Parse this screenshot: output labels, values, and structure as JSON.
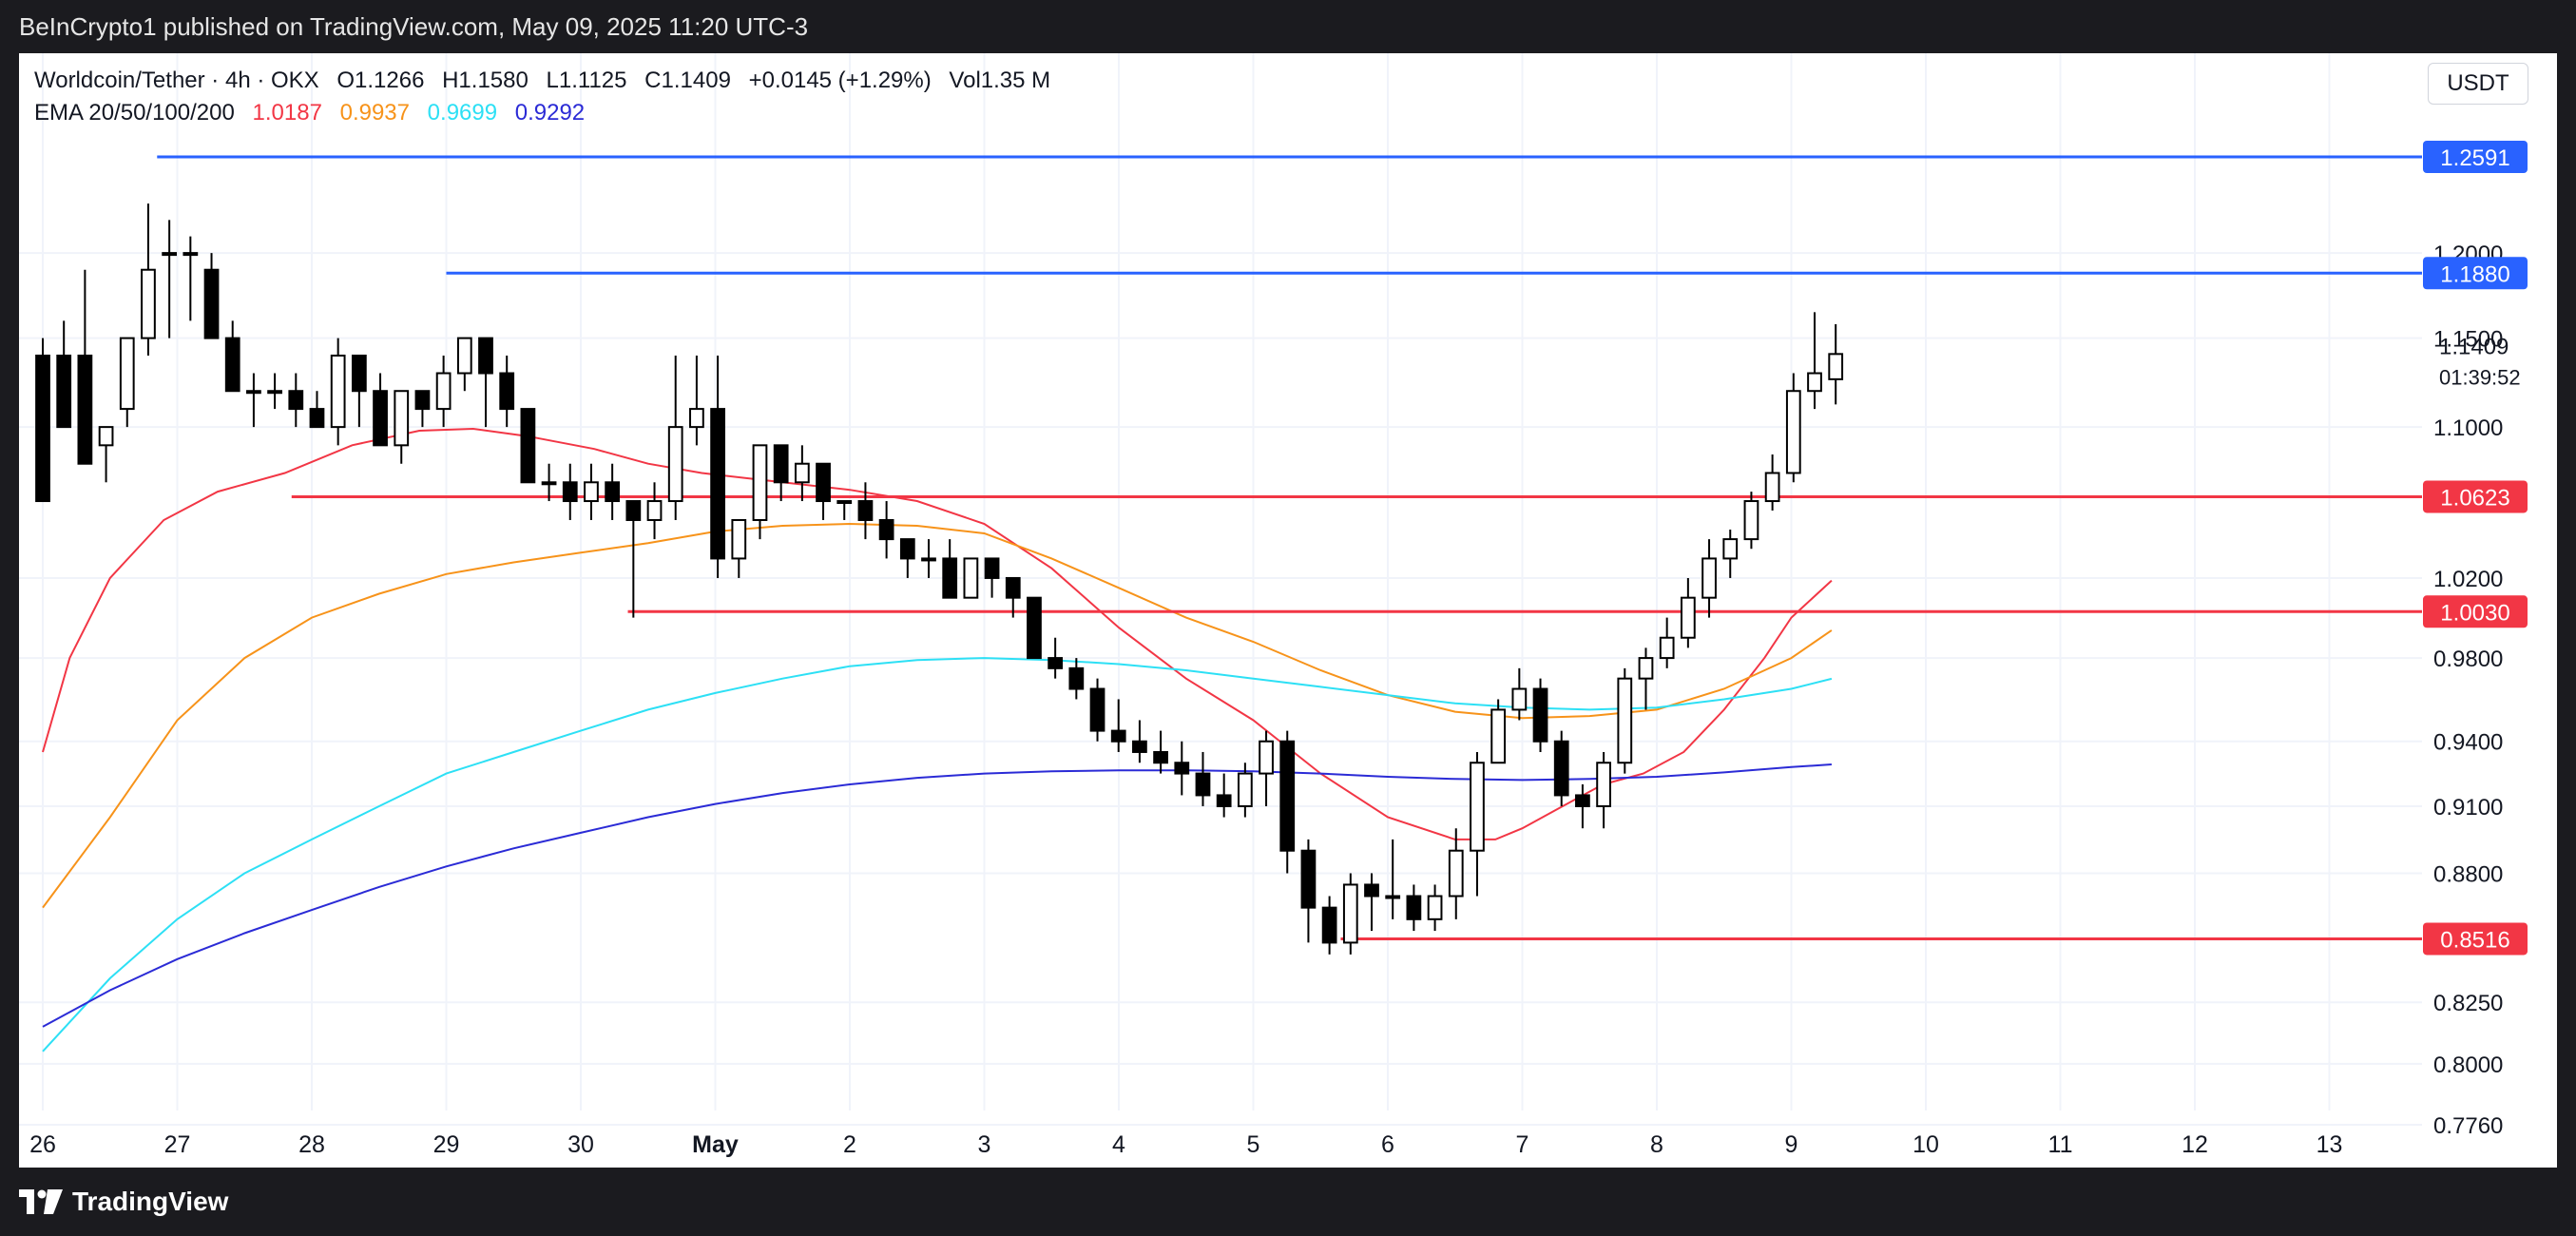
{
  "header": {
    "published": "BeInCrypto1 published on TradingView.com, May 09, 2025 11:20 UTC-3"
  },
  "legend": {
    "symbol": "Worldcoin/Tether · 4h · OKX",
    "open": "O1.1266",
    "high": "H1.1580",
    "low": "L1.1125",
    "close": "C1.1409",
    "change": "+0.0145 (+1.29%)",
    "volume": "Vol1.35 M",
    "ema_label": "EMA 20/50/100/200",
    "ema_values": [
      "1.0187",
      "0.9937",
      "0.9699",
      "0.9292"
    ],
    "ema_colors": [
      "#f23645",
      "#f7931a",
      "#2de0f5",
      "#2b2bd6"
    ]
  },
  "currency": "USDT",
  "countdown": "01:39:52",
  "footer": {
    "brand": "TradingView"
  },
  "colors": {
    "up_candle": "#ffffff",
    "down_candle": "#000000",
    "resistance": "#2962ff",
    "support": "#f23645",
    "grid": "#f0f3fa"
  },
  "chart_data": {
    "type": "candlestick",
    "title": "",
    "timeframe": "4h",
    "price_axis_ticks": [
      "1.2000",
      "1.1500",
      "1.1000",
      "1.0200",
      "0.9800",
      "0.9400",
      "0.9100",
      "0.8800",
      "0.8250",
      "0.8000",
      "0.7760"
    ],
    "time_axis_ticks": [
      "26",
      "27",
      "28",
      "29",
      "30",
      "May",
      "2",
      "3",
      "4",
      "5",
      "6",
      "7",
      "8",
      "9",
      "10",
      "11",
      "12",
      "13"
    ],
    "ylim": [
      0.76,
      1.28
    ],
    "last_price": 1.1409,
    "horizontal_levels": [
      {
        "price": 1.2591,
        "label": "1.2591",
        "color": "#2962ff",
        "start_day": 26.85
      },
      {
        "price": 1.188,
        "label": "1.1880",
        "color": "#2962ff",
        "start_day": 29.0
      },
      {
        "price": 1.0623,
        "label": "1.0623",
        "color": "#f23645",
        "start_day": 27.85
      },
      {
        "price": 1.003,
        "label": "1.0030",
        "color": "#f23645",
        "start_day": 30.35
      },
      {
        "price": 0.8516,
        "label": "0.8516",
        "color": "#f23645",
        "start_day": 35.65
      }
    ],
    "candles": [
      {
        "o": 1.14,
        "h": 1.15,
        "l": 1.06,
        "c": 1.06
      },
      {
        "o": 1.14,
        "h": 1.16,
        "l": 1.1,
        "c": 1.1
      },
      {
        "o": 1.14,
        "h": 1.19,
        "l": 1.08,
        "c": 1.08
      },
      {
        "o": 1.09,
        "h": 1.1,
        "l": 1.07,
        "c": 1.1
      },
      {
        "o": 1.11,
        "h": 1.15,
        "l": 1.1,
        "c": 1.15
      },
      {
        "o": 1.15,
        "h": 1.23,
        "l": 1.14,
        "c": 1.19
      },
      {
        "o": 1.2,
        "h": 1.22,
        "l": 1.15,
        "c": 1.2
      },
      {
        "o": 1.2,
        "h": 1.21,
        "l": 1.16,
        "c": 1.2
      },
      {
        "o": 1.19,
        "h": 1.2,
        "l": 1.15,
        "c": 1.15
      },
      {
        "o": 1.15,
        "h": 1.16,
        "l": 1.12,
        "c": 1.12
      },
      {
        "o": 1.12,
        "h": 1.13,
        "l": 1.1,
        "c": 1.12
      },
      {
        "o": 1.12,
        "h": 1.13,
        "l": 1.11,
        "c": 1.12
      },
      {
        "o": 1.12,
        "h": 1.13,
        "l": 1.1,
        "c": 1.11
      },
      {
        "o": 1.11,
        "h": 1.12,
        "l": 1.1,
        "c": 1.1
      },
      {
        "o": 1.1,
        "h": 1.15,
        "l": 1.09,
        "c": 1.14
      },
      {
        "o": 1.14,
        "h": 1.14,
        "l": 1.1,
        "c": 1.12
      },
      {
        "o": 1.12,
        "h": 1.13,
        "l": 1.09,
        "c": 1.09
      },
      {
        "o": 1.09,
        "h": 1.12,
        "l": 1.08,
        "c": 1.12
      },
      {
        "o": 1.12,
        "h": 1.12,
        "l": 1.1,
        "c": 1.11
      },
      {
        "o": 1.11,
        "h": 1.14,
        "l": 1.1,
        "c": 1.13
      },
      {
        "o": 1.13,
        "h": 1.15,
        "l": 1.12,
        "c": 1.15
      },
      {
        "o": 1.15,
        "h": 1.15,
        "l": 1.1,
        "c": 1.13
      },
      {
        "o": 1.13,
        "h": 1.14,
        "l": 1.1,
        "c": 1.11
      },
      {
        "o": 1.11,
        "h": 1.11,
        "l": 1.07,
        "c": 1.07
      },
      {
        "o": 1.07,
        "h": 1.08,
        "l": 1.06,
        "c": 1.07
      },
      {
        "o": 1.07,
        "h": 1.08,
        "l": 1.05,
        "c": 1.06
      },
      {
        "o": 1.06,
        "h": 1.08,
        "l": 1.05,
        "c": 1.07
      },
      {
        "o": 1.07,
        "h": 1.08,
        "l": 1.05,
        "c": 1.06
      },
      {
        "o": 1.06,
        "h": 1.06,
        "l": 1.0,
        "c": 1.05
      },
      {
        "o": 1.05,
        "h": 1.07,
        "l": 1.04,
        "c": 1.06
      },
      {
        "o": 1.06,
        "h": 1.14,
        "l": 1.05,
        "c": 1.1
      },
      {
        "o": 1.1,
        "h": 1.14,
        "l": 1.09,
        "c": 1.11
      },
      {
        "o": 1.11,
        "h": 1.14,
        "l": 1.02,
        "c": 1.03
      },
      {
        "o": 1.03,
        "h": 1.05,
        "l": 1.02,
        "c": 1.05
      },
      {
        "o": 1.05,
        "h": 1.09,
        "l": 1.04,
        "c": 1.09
      },
      {
        "o": 1.09,
        "h": 1.09,
        "l": 1.06,
        "c": 1.07
      },
      {
        "o": 1.07,
        "h": 1.09,
        "l": 1.06,
        "c": 1.08
      },
      {
        "o": 1.08,
        "h": 1.08,
        "l": 1.05,
        "c": 1.06
      },
      {
        "o": 1.06,
        "h": 1.06,
        "l": 1.05,
        "c": 1.06
      },
      {
        "o": 1.06,
        "h": 1.07,
        "l": 1.04,
        "c": 1.05
      },
      {
        "o": 1.05,
        "h": 1.06,
        "l": 1.03,
        "c": 1.04
      },
      {
        "o": 1.04,
        "h": 1.04,
        "l": 1.02,
        "c": 1.03
      },
      {
        "o": 1.03,
        "h": 1.04,
        "l": 1.02,
        "c": 1.03
      },
      {
        "o": 1.03,
        "h": 1.04,
        "l": 1.01,
        "c": 1.01
      },
      {
        "o": 1.01,
        "h": 1.03,
        "l": 1.01,
        "c": 1.03
      },
      {
        "o": 1.03,
        "h": 1.03,
        "l": 1.01,
        "c": 1.02
      },
      {
        "o": 1.02,
        "h": 1.02,
        "l": 1.0,
        "c": 1.01
      },
      {
        "o": 1.01,
        "h": 1.01,
        "l": 0.98,
        "c": 0.98
      },
      {
        "o": 0.98,
        "h": 0.99,
        "l": 0.97,
        "c": 0.975
      },
      {
        "o": 0.975,
        "h": 0.98,
        "l": 0.96,
        "c": 0.965
      },
      {
        "o": 0.965,
        "h": 0.97,
        "l": 0.94,
        "c": 0.945
      },
      {
        "o": 0.945,
        "h": 0.96,
        "l": 0.935,
        "c": 0.94
      },
      {
        "o": 0.94,
        "h": 0.95,
        "l": 0.93,
        "c": 0.935
      },
      {
        "o": 0.935,
        "h": 0.945,
        "l": 0.925,
        "c": 0.93
      },
      {
        "o": 0.93,
        "h": 0.94,
        "l": 0.915,
        "c": 0.925
      },
      {
        "o": 0.925,
        "h": 0.935,
        "l": 0.91,
        "c": 0.915
      },
      {
        "o": 0.915,
        "h": 0.925,
        "l": 0.905,
        "c": 0.91
      },
      {
        "o": 0.91,
        "h": 0.93,
        "l": 0.905,
        "c": 0.925
      },
      {
        "o": 0.925,
        "h": 0.945,
        "l": 0.91,
        "c": 0.94
      },
      {
        "o": 0.94,
        "h": 0.945,
        "l": 0.88,
        "c": 0.89
      },
      {
        "o": 0.89,
        "h": 0.895,
        "l": 0.85,
        "c": 0.865
      },
      {
        "o": 0.865,
        "h": 0.87,
        "l": 0.845,
        "c": 0.85
      },
      {
        "o": 0.85,
        "h": 0.88,
        "l": 0.845,
        "c": 0.875
      },
      {
        "o": 0.875,
        "h": 0.88,
        "l": 0.855,
        "c": 0.87
      },
      {
        "o": 0.87,
        "h": 0.895,
        "l": 0.86,
        "c": 0.87
      },
      {
        "o": 0.87,
        "h": 0.875,
        "l": 0.855,
        "c": 0.86
      },
      {
        "o": 0.86,
        "h": 0.875,
        "l": 0.855,
        "c": 0.87
      },
      {
        "o": 0.87,
        "h": 0.9,
        "l": 0.86,
        "c": 0.89
      },
      {
        "o": 0.89,
        "h": 0.935,
        "l": 0.87,
        "c": 0.93
      },
      {
        "o": 0.93,
        "h": 0.96,
        "l": 0.93,
        "c": 0.955
      },
      {
        "o": 0.955,
        "h": 0.975,
        "l": 0.95,
        "c": 0.965
      },
      {
        "o": 0.965,
        "h": 0.97,
        "l": 0.935,
        "c": 0.94
      },
      {
        "o": 0.94,
        "h": 0.945,
        "l": 0.91,
        "c": 0.915
      },
      {
        "o": 0.915,
        "h": 0.92,
        "l": 0.9,
        "c": 0.91
      },
      {
        "o": 0.91,
        "h": 0.935,
        "l": 0.9,
        "c": 0.93
      },
      {
        "o": 0.93,
        "h": 0.975,
        "l": 0.925,
        "c": 0.97
      },
      {
        "o": 0.97,
        "h": 0.985,
        "l": 0.955,
        "c": 0.98
      },
      {
        "o": 0.98,
        "h": 1.0,
        "l": 0.975,
        "c": 0.99
      },
      {
        "o": 0.99,
        "h": 1.02,
        "l": 0.985,
        "c": 1.01
      },
      {
        "o": 1.01,
        "h": 1.04,
        "l": 1.0,
        "c": 1.03
      },
      {
        "o": 1.03,
        "h": 1.045,
        "l": 1.02,
        "c": 1.04
      },
      {
        "o": 1.04,
        "h": 1.065,
        "l": 1.035,
        "c": 1.06
      },
      {
        "o": 1.06,
        "h": 1.085,
        "l": 1.055,
        "c": 1.075
      },
      {
        "o": 1.075,
        "h": 1.13,
        "l": 1.07,
        "c": 1.12
      },
      {
        "o": 1.12,
        "h": 1.165,
        "l": 1.11,
        "c": 1.13
      },
      {
        "o": 1.1266,
        "h": 1.158,
        "l": 1.1125,
        "c": 1.1409
      }
    ],
    "ema": [
      {
        "name": "EMA 20",
        "color": "#f23645",
        "points": [
          [
            26.0,
            0.935
          ],
          [
            26.2,
            0.98
          ],
          [
            26.5,
            1.02
          ],
          [
            26.9,
            1.05
          ],
          [
            27.3,
            1.065
          ],
          [
            27.8,
            1.075
          ],
          [
            28.3,
            1.09
          ],
          [
            28.8,
            1.098
          ],
          [
            29.2,
            1.099
          ],
          [
            29.6,
            1.095
          ],
          [
            30.1,
            1.088
          ],
          [
            30.5,
            1.08
          ],
          [
            30.9,
            1.075
          ],
          [
            31.5,
            1.07
          ],
          [
            32.0,
            1.066
          ],
          [
            32.5,
            1.06
          ],
          [
            33.0,
            1.048
          ],
          [
            33.5,
            1.025
          ],
          [
            34.0,
            0.995
          ],
          [
            34.5,
            0.97
          ],
          [
            35.0,
            0.95
          ],
          [
            35.5,
            0.925
          ],
          [
            36.0,
            0.905
          ],
          [
            36.5,
            0.895
          ],
          [
            36.8,
            0.895
          ],
          [
            37.0,
            0.9
          ],
          [
            37.3,
            0.91
          ],
          [
            37.6,
            0.92
          ],
          [
            37.9,
            0.925
          ],
          [
            38.2,
            0.935
          ],
          [
            38.5,
            0.955
          ],
          [
            38.8,
            0.98
          ],
          [
            39.0,
            1.0
          ],
          [
            39.3,
            1.0187
          ]
        ]
      },
      {
        "name": "EMA 50",
        "color": "#f7931a",
        "points": [
          [
            26.0,
            0.865
          ],
          [
            26.5,
            0.905
          ],
          [
            27.0,
            0.95
          ],
          [
            27.5,
            0.98
          ],
          [
            28.0,
            1.0
          ],
          [
            28.5,
            1.012
          ],
          [
            29.0,
            1.022
          ],
          [
            29.5,
            1.028
          ],
          [
            30.0,
            1.033
          ],
          [
            30.5,
            1.038
          ],
          [
            31.0,
            1.044
          ],
          [
            31.5,
            1.047
          ],
          [
            32.0,
            1.048
          ],
          [
            32.5,
            1.047
          ],
          [
            33.0,
            1.043
          ],
          [
            33.5,
            1.03
          ],
          [
            34.0,
            1.015
          ],
          [
            34.5,
            1.0
          ],
          [
            35.0,
            0.988
          ],
          [
            35.5,
            0.974
          ],
          [
            36.0,
            0.962
          ],
          [
            36.5,
            0.954
          ],
          [
            37.0,
            0.951
          ],
          [
            37.5,
            0.952
          ],
          [
            38.0,
            0.955
          ],
          [
            38.5,
            0.965
          ],
          [
            39.0,
            0.98
          ],
          [
            39.3,
            0.9937
          ]
        ]
      },
      {
        "name": "EMA 100",
        "color": "#2de0f5",
        "points": [
          [
            26.0,
            0.805
          ],
          [
            26.5,
            0.835
          ],
          [
            27.0,
            0.86
          ],
          [
            27.5,
            0.88
          ],
          [
            28.0,
            0.895
          ],
          [
            28.5,
            0.91
          ],
          [
            29.0,
            0.925
          ],
          [
            29.5,
            0.935
          ],
          [
            30.0,
            0.945
          ],
          [
            30.5,
            0.955
          ],
          [
            31.0,
            0.963
          ],
          [
            31.5,
            0.97
          ],
          [
            32.0,
            0.976
          ],
          [
            32.5,
            0.979
          ],
          [
            33.0,
            0.98
          ],
          [
            33.5,
            0.979
          ],
          [
            34.0,
            0.977
          ],
          [
            34.5,
            0.974
          ],
          [
            35.0,
            0.97
          ],
          [
            35.5,
            0.966
          ],
          [
            36.0,
            0.962
          ],
          [
            36.5,
            0.958
          ],
          [
            37.0,
            0.956
          ],
          [
            37.5,
            0.955
          ],
          [
            38.0,
            0.956
          ],
          [
            38.5,
            0.96
          ],
          [
            39.0,
            0.965
          ],
          [
            39.3,
            0.9699
          ]
        ]
      },
      {
        "name": "EMA 200",
        "color": "#2b2bd6",
        "points": [
          [
            26.0,
            0.815
          ],
          [
            26.5,
            0.83
          ],
          [
            27.0,
            0.843
          ],
          [
            27.5,
            0.854
          ],
          [
            28.0,
            0.864
          ],
          [
            28.5,
            0.874
          ],
          [
            29.0,
            0.883
          ],
          [
            29.5,
            0.891
          ],
          [
            30.0,
            0.898
          ],
          [
            30.5,
            0.905
          ],
          [
            31.0,
            0.911
          ],
          [
            31.5,
            0.916
          ],
          [
            32.0,
            0.92
          ],
          [
            32.5,
            0.923
          ],
          [
            33.0,
            0.925
          ],
          [
            33.5,
            0.926
          ],
          [
            34.0,
            0.9265
          ],
          [
            34.5,
            0.9265
          ],
          [
            35.0,
            0.926
          ],
          [
            35.5,
            0.925
          ],
          [
            36.0,
            0.9235
          ],
          [
            36.5,
            0.9225
          ],
          [
            37.0,
            0.922
          ],
          [
            37.5,
            0.9225
          ],
          [
            38.0,
            0.9235
          ],
          [
            38.5,
            0.9255
          ],
          [
            39.0,
            0.928
          ],
          [
            39.3,
            0.9292
          ]
        ]
      }
    ]
  }
}
